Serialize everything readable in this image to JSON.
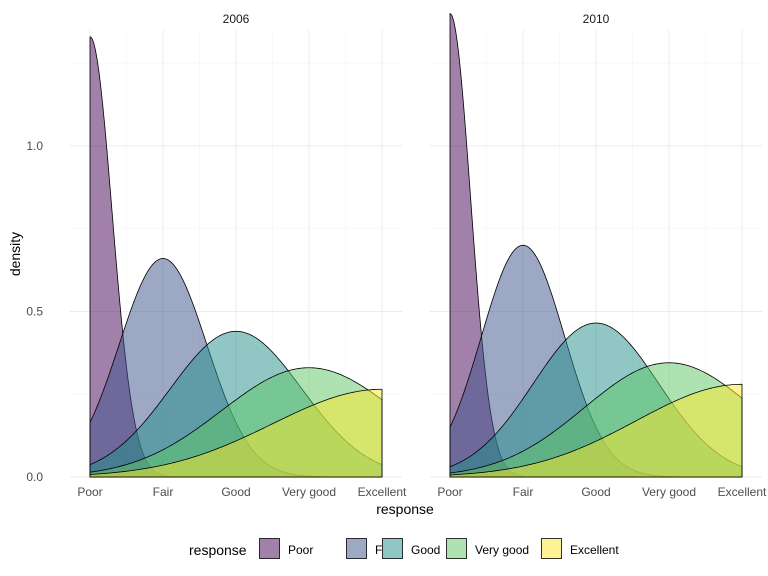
{
  "chart_data": {
    "type": "area",
    "title": "",
    "xlabel": "response",
    "ylabel": "density",
    "x_categories": [
      "Poor",
      "Fair",
      "Good",
      "Very good",
      "Excellent"
    ],
    "y_ticks": [
      "0.0",
      "0.5",
      "1.0"
    ],
    "ylim": [
      0,
      1.35
    ],
    "grid": true,
    "legend": {
      "title": "response",
      "position": "bottom",
      "entries": [
        "Poor",
        "Fair",
        "Good",
        "Very good",
        "Excellent"
      ]
    },
    "colors": {
      "Poor": "#440154",
      "Fair": "#3B528B",
      "Good": "#21908C",
      "Very good": "#5DC863",
      "Excellent": "#FDE725"
    },
    "panels": [
      {
        "label": "2006",
        "series": [
          {
            "name": "Poor",
            "peak_x": 1.0,
            "peak_density": 1.33,
            "sd": 0.3
          },
          {
            "name": "Fair",
            "peak_x": 2.0,
            "peak_density": 0.66,
            "sd": 0.6
          },
          {
            "name": "Good",
            "peak_x": 3.0,
            "peak_density": 0.44,
            "sd": 0.9
          },
          {
            "name": "Very good",
            "peak_x": 4.0,
            "peak_density": 0.33,
            "sd": 1.2
          },
          {
            "name": "Excellent",
            "peak_x": 5.0,
            "peak_density": 0.265,
            "sd": 1.5
          }
        ]
      },
      {
        "label": "2010",
        "series": [
          {
            "name": "Poor",
            "peak_x": 1.0,
            "peak_density": 1.4,
            "sd": 0.28
          },
          {
            "name": "Fair",
            "peak_x": 2.0,
            "peak_density": 0.7,
            "sd": 0.57
          },
          {
            "name": "Good",
            "peak_x": 3.0,
            "peak_density": 0.465,
            "sd": 0.86
          },
          {
            "name": "Very good",
            "peak_x": 4.0,
            "peak_density": 0.345,
            "sd": 1.16
          },
          {
            "name": "Excellent",
            "peak_x": 5.0,
            "peak_density": 0.28,
            "sd": 1.45
          }
        ]
      }
    ]
  }
}
